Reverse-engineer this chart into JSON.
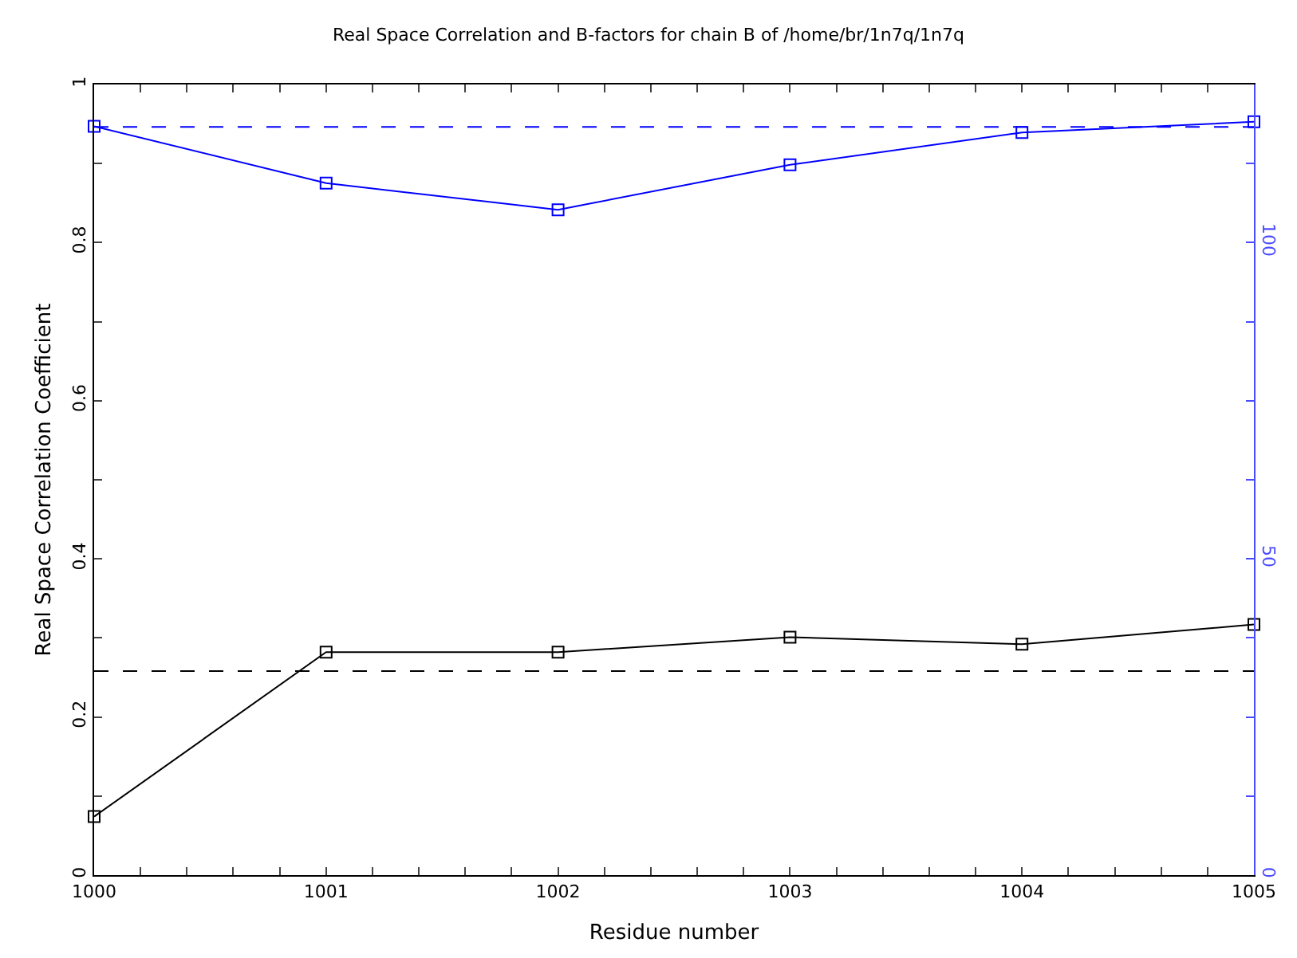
{
  "chart_data": {
    "type": "line",
    "title": "Real Space Correlation and B-factors for chain B of /home/br/1n7q/1n7q",
    "xlabel": "Residue number",
    "ylabel": "Real Space Correlation Coefficient",
    "x": [
      1000,
      1001,
      1002,
      1003,
      1004,
      1005
    ],
    "series": [
      {
        "color": "#000000",
        "values": [
          0.074,
          0.282,
          0.282,
          0.301,
          0.292,
          0.317
        ]
      },
      {
        "color": "#0000ff",
        "axis": "y2",
        "values": [
          118.4,
          109.4,
          105.2,
          112.3,
          117.4,
          119.1
        ]
      }
    ],
    "ref_lines": [
      {
        "axis": "y",
        "value": 0.258,
        "color": "#000000",
        "line_style": "dashed"
      },
      {
        "axis": "y2",
        "value": 118.3,
        "color": "#0000ff",
        "line_style": "dashed"
      }
    ],
    "xlim": [
      1000,
      1005
    ],
    "xticks": [
      1000,
      {
        "value": 1000.2,
        "label": null
      },
      {
        "value": 1000.4,
        "label": null
      },
      {
        "value": 1000.6,
        "label": null
      },
      {
        "value": 1000.8,
        "label": null
      },
      1001,
      {
        "value": 1001.2,
        "label": null
      },
      {
        "value": 1001.4,
        "label": null
      },
      {
        "value": 1001.6,
        "label": null
      },
      {
        "value": 1001.8,
        "label": null
      },
      1002,
      {
        "value": 1002.2,
        "label": null
      },
      {
        "value": 1002.4,
        "label": null
      },
      {
        "value": 1002.6,
        "label": null
      },
      {
        "value": 1002.8,
        "label": null
      },
      1003,
      {
        "value": 1003.2,
        "label": null
      },
      {
        "value": 1003.4,
        "label": null
      },
      {
        "value": 1003.6,
        "label": null
      },
      {
        "value": 1003.8,
        "label": null
      },
      1004,
      {
        "value": 1004.2,
        "label": null
      },
      {
        "value": 1004.4,
        "label": null
      },
      {
        "value": 1004.6,
        "label": null
      },
      {
        "value": 1004.8,
        "label": null
      },
      1005
    ],
    "ylim": [
      0,
      1
    ],
    "yticks": [
      0,
      {
        "value": 0.1,
        "label": null
      },
      0.2,
      {
        "value": 0.3,
        "label": null
      },
      0.4,
      {
        "value": 0.5,
        "label": null
      },
      0.6,
      {
        "value": 0.7,
        "label": null
      },
      0.8,
      {
        "value": 0.9,
        "label": null
      },
      1
    ],
    "y2lim": [
      0,
      125
    ],
    "y2ticks": [
      0,
      {
        "value": 12.5,
        "label": null
      },
      {
        "value": 25,
        "label": null
      },
      {
        "value": 37.5,
        "label": null
      },
      50,
      {
        "value": 62.5,
        "label": null
      },
      {
        "value": 75,
        "label": null
      },
      {
        "value": 87.5,
        "label": null
      },
      100,
      {
        "value": 112.5,
        "label": null
      }
    ],
    "marker": "square",
    "line_style": "solid",
    "legend": false
  }
}
